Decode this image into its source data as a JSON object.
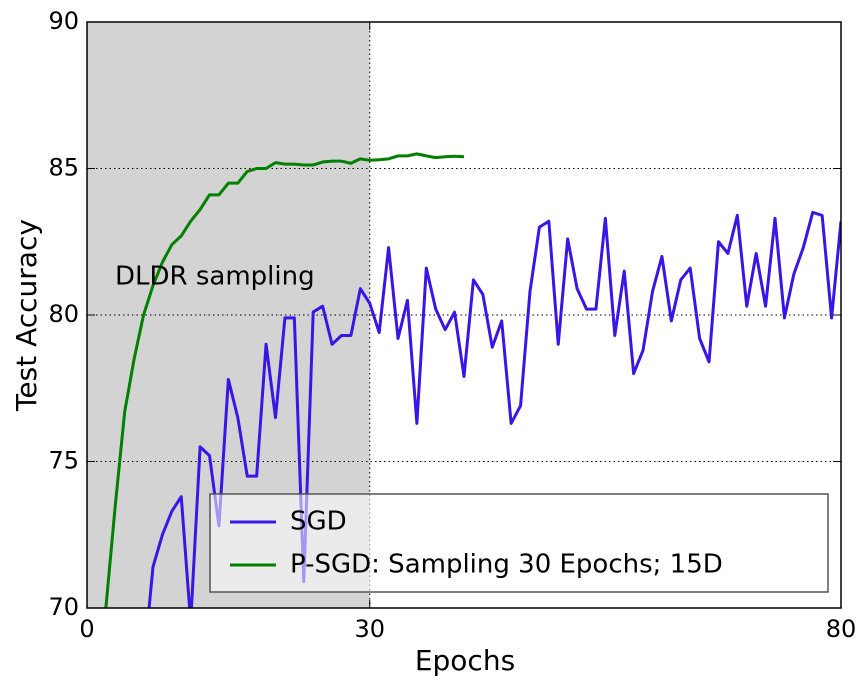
{
  "chart_data": {
    "type": "line",
    "xlabel": "Epochs",
    "ylabel": "Test Accuracy",
    "annotation": "DLDR sampling",
    "shaded_span": [
      0,
      30
    ],
    "xlim": [
      0,
      80
    ],
    "xticks": [
      0,
      30,
      80
    ],
    "ylim": [
      70,
      90
    ],
    "yticks": [
      70,
      75,
      80,
      85,
      90
    ],
    "grid": true,
    "legend": "lower right",
    "series": [
      {
        "name": "SGD",
        "color": "#3b14e6",
        "x": [
          6,
          7,
          8,
          9,
          10,
          11,
          12,
          13,
          14,
          15,
          16,
          17,
          18,
          19,
          20,
          21,
          22,
          23,
          24,
          25,
          26,
          27,
          28,
          29,
          30,
          31,
          32,
          33,
          34,
          35,
          36,
          37,
          38,
          39,
          40,
          41,
          42,
          43,
          44,
          45,
          46,
          47,
          48,
          49,
          50,
          51,
          52,
          53,
          54,
          55,
          56,
          57,
          58,
          59,
          60,
          61,
          62,
          63,
          64,
          65,
          66,
          67,
          68,
          69,
          70,
          71,
          72,
          73,
          74,
          75,
          76,
          77,
          78,
          79,
          80
        ],
        "values": [
          68,
          71.4,
          72.5,
          73.3,
          73.8,
          69.5,
          75.5,
          75.2,
          72.8,
          77.8,
          76.5,
          74.5,
          74.5,
          79.0,
          76.5,
          79.9,
          79.9,
          70.9,
          80.1,
          80.3,
          79.0,
          79.3,
          79.3,
          80.9,
          80.4,
          79.4,
          82.3,
          79.2,
          80.5,
          76.3,
          81.6,
          80.2,
          79.5,
          80.1,
          77.9,
          81.2,
          80.7,
          78.9,
          79.8,
          76.3,
          76.9,
          80.8,
          83.0,
          83.2,
          79.0,
          82.6,
          80.9,
          80.2,
          80.2,
          83.3,
          79.3,
          81.5,
          78.0,
          78.8,
          80.8,
          82.0,
          79.8,
          81.2,
          81.6,
          79.2,
          78.4,
          82.5,
          82.1,
          83.4,
          80.3,
          82.1,
          80.3,
          83.3,
          79.9,
          81.4,
          82.3,
          83.5,
          83.4,
          79.9,
          83.2
        ]
      },
      {
        "name": "P-SGD: Sampling 30 Epochs; 15D",
        "color": "#008000",
        "x": [
          2,
          3,
          4,
          5,
          6,
          7,
          8,
          9,
          10,
          11,
          12,
          13,
          14,
          15,
          16,
          17,
          18,
          19,
          20,
          21,
          22,
          23,
          24,
          25,
          26,
          27,
          28,
          29,
          30,
          31,
          32,
          33,
          34,
          35,
          36,
          37,
          38,
          39,
          40
        ],
        "values": [
          70,
          73.5,
          76.7,
          78.5,
          80.0,
          81.0,
          81.8,
          82.4,
          82.7,
          83.2,
          83.6,
          84.1,
          84.1,
          84.5,
          84.5,
          84.9,
          85.0,
          85.0,
          85.2,
          85.15,
          85.15,
          85.12,
          85.12,
          85.22,
          85.25,
          85.25,
          85.18,
          85.33,
          85.28,
          85.3,
          85.33,
          85.43,
          85.43,
          85.5,
          85.43,
          85.37,
          85.4,
          85.42,
          85.4
        ]
      }
    ]
  }
}
